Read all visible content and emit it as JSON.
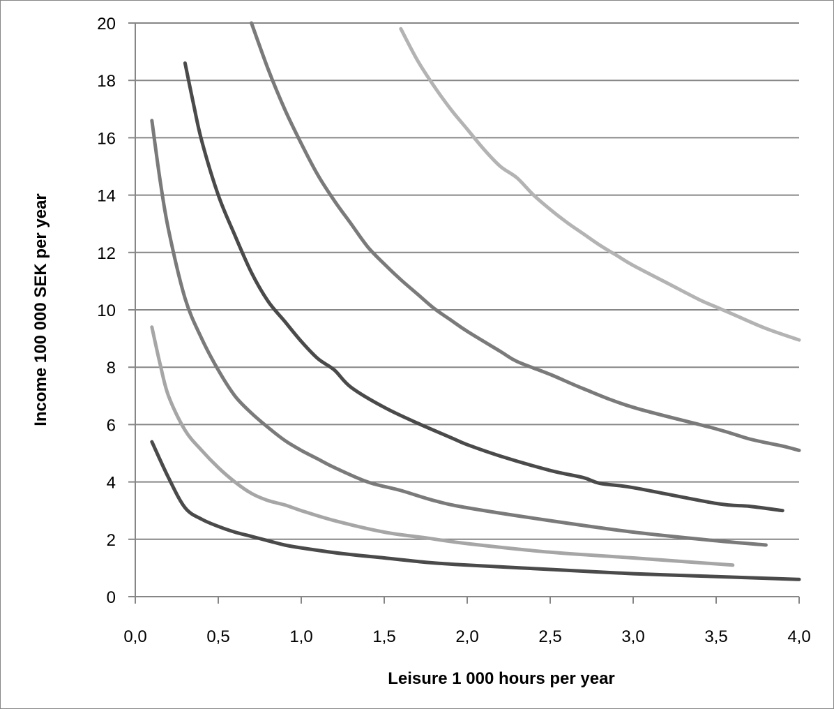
{
  "chart_data": {
    "type": "line",
    "title": "",
    "xlabel": "Leisure 1 000 hours per year",
    "ylabel": "Income 100 000 SEK per year",
    "xlim": [
      0,
      4
    ],
    "ylim": [
      0,
      20
    ],
    "x_ticks": [
      "0,0",
      "0,5",
      "1,0",
      "1,5",
      "2,0",
      "2,5",
      "3,0",
      "3,5",
      "4,0"
    ],
    "y_ticks": [
      "0",
      "2",
      "4",
      "6",
      "8",
      "10",
      "12",
      "14",
      "16",
      "18",
      "20"
    ],
    "grid": "horizontal",
    "legend": "none",
    "series": [
      {
        "color": "#4a4a4a",
        "points": [
          [
            0.1,
            5.4
          ],
          [
            0.2,
            4.15
          ],
          [
            0.3,
            3.1
          ],
          [
            0.4,
            2.7
          ],
          [
            0.5,
            2.45
          ],
          [
            0.6,
            2.25
          ],
          [
            0.7,
            2.1
          ],
          [
            0.8,
            1.95
          ],
          [
            0.9,
            1.8
          ],
          [
            1.0,
            1.7
          ],
          [
            1.25,
            1.5
          ],
          [
            1.5,
            1.35
          ],
          [
            1.75,
            1.2
          ],
          [
            2.0,
            1.1
          ],
          [
            2.5,
            0.95
          ],
          [
            3.0,
            0.8
          ],
          [
            3.5,
            0.7
          ],
          [
            4.0,
            0.6
          ]
        ]
      },
      {
        "color": "#a6a6a6",
        "points": [
          [
            0.1,
            9.4
          ],
          [
            0.15,
            8.1
          ],
          [
            0.2,
            7.0
          ],
          [
            0.3,
            5.8
          ],
          [
            0.4,
            5.1
          ],
          [
            0.5,
            4.5
          ],
          [
            0.6,
            4.0
          ],
          [
            0.7,
            3.6
          ],
          [
            0.8,
            3.35
          ],
          [
            0.9,
            3.2
          ],
          [
            1.0,
            3.0
          ],
          [
            1.2,
            2.65
          ],
          [
            1.5,
            2.25
          ],
          [
            1.75,
            2.05
          ],
          [
            2.0,
            1.85
          ],
          [
            2.5,
            1.55
          ],
          [
            3.0,
            1.35
          ],
          [
            3.6,
            1.1
          ]
        ]
      },
      {
        "color": "#7a7a7a",
        "points": [
          [
            0.1,
            16.6
          ],
          [
            0.15,
            14.5
          ],
          [
            0.2,
            12.8
          ],
          [
            0.3,
            10.4
          ],
          [
            0.4,
            9.0
          ],
          [
            0.5,
            7.9
          ],
          [
            0.6,
            7.0
          ],
          [
            0.7,
            6.4
          ],
          [
            0.8,
            5.9
          ],
          [
            0.9,
            5.45
          ],
          [
            1.0,
            5.1
          ],
          [
            1.1,
            4.8
          ],
          [
            1.2,
            4.5
          ],
          [
            1.4,
            4.0
          ],
          [
            1.6,
            3.7
          ],
          [
            1.8,
            3.35
          ],
          [
            2.0,
            3.1
          ],
          [
            2.5,
            2.65
          ],
          [
            3.0,
            2.25
          ],
          [
            3.5,
            1.95
          ],
          [
            3.8,
            1.8
          ]
        ]
      },
      {
        "color": "#4a4a4a",
        "points": [
          [
            0.3,
            18.6
          ],
          [
            0.35,
            17.2
          ],
          [
            0.4,
            15.9
          ],
          [
            0.5,
            14.0
          ],
          [
            0.6,
            12.6
          ],
          [
            0.7,
            11.3
          ],
          [
            0.8,
            10.3
          ],
          [
            0.9,
            9.6
          ],
          [
            1.0,
            8.9
          ],
          [
            1.1,
            8.3
          ],
          [
            1.2,
            7.9
          ],
          [
            1.3,
            7.3
          ],
          [
            1.5,
            6.6
          ],
          [
            1.7,
            6.05
          ],
          [
            1.9,
            5.55
          ],
          [
            2.0,
            5.3
          ],
          [
            2.2,
            4.9
          ],
          [
            2.5,
            4.4
          ],
          [
            2.7,
            4.15
          ],
          [
            2.8,
            3.95
          ],
          [
            3.0,
            3.8
          ],
          [
            3.5,
            3.25
          ],
          [
            3.7,
            3.15
          ],
          [
            3.9,
            3.0
          ]
        ]
      },
      {
        "color": "#7a7a7a",
        "points": [
          [
            0.7,
            20.0
          ],
          [
            0.8,
            18.4
          ],
          [
            0.9,
            17.0
          ],
          [
            1.0,
            15.8
          ],
          [
            1.1,
            14.7
          ],
          [
            1.2,
            13.8
          ],
          [
            1.3,
            13.0
          ],
          [
            1.4,
            12.2
          ],
          [
            1.5,
            11.6
          ],
          [
            1.6,
            11.05
          ],
          [
            1.7,
            10.55
          ],
          [
            1.8,
            10.05
          ],
          [
            1.9,
            9.65
          ],
          [
            2.0,
            9.25
          ],
          [
            2.2,
            8.55
          ],
          [
            2.3,
            8.2
          ],
          [
            2.5,
            7.75
          ],
          [
            2.7,
            7.25
          ],
          [
            3.0,
            6.6
          ],
          [
            3.5,
            5.85
          ],
          [
            3.7,
            5.5
          ],
          [
            3.9,
            5.25
          ],
          [
            4.0,
            5.1
          ]
        ]
      },
      {
        "color": "#b3b3b3",
        "points": [
          [
            1.6,
            19.8
          ],
          [
            1.7,
            18.7
          ],
          [
            1.8,
            17.8
          ],
          [
            1.9,
            17.0
          ],
          [
            2.0,
            16.3
          ],
          [
            2.1,
            15.6
          ],
          [
            2.2,
            15.0
          ],
          [
            2.3,
            14.6
          ],
          [
            2.4,
            14.0
          ],
          [
            2.5,
            13.5
          ],
          [
            2.6,
            13.05
          ],
          [
            2.7,
            12.65
          ],
          [
            2.8,
            12.25
          ],
          [
            2.9,
            11.9
          ],
          [
            3.0,
            11.55
          ],
          [
            3.2,
            10.95
          ],
          [
            3.4,
            10.35
          ],
          [
            3.5,
            10.1
          ],
          [
            3.6,
            9.85
          ],
          [
            3.8,
            9.35
          ],
          [
            4.0,
            8.95
          ]
        ]
      }
    ]
  }
}
